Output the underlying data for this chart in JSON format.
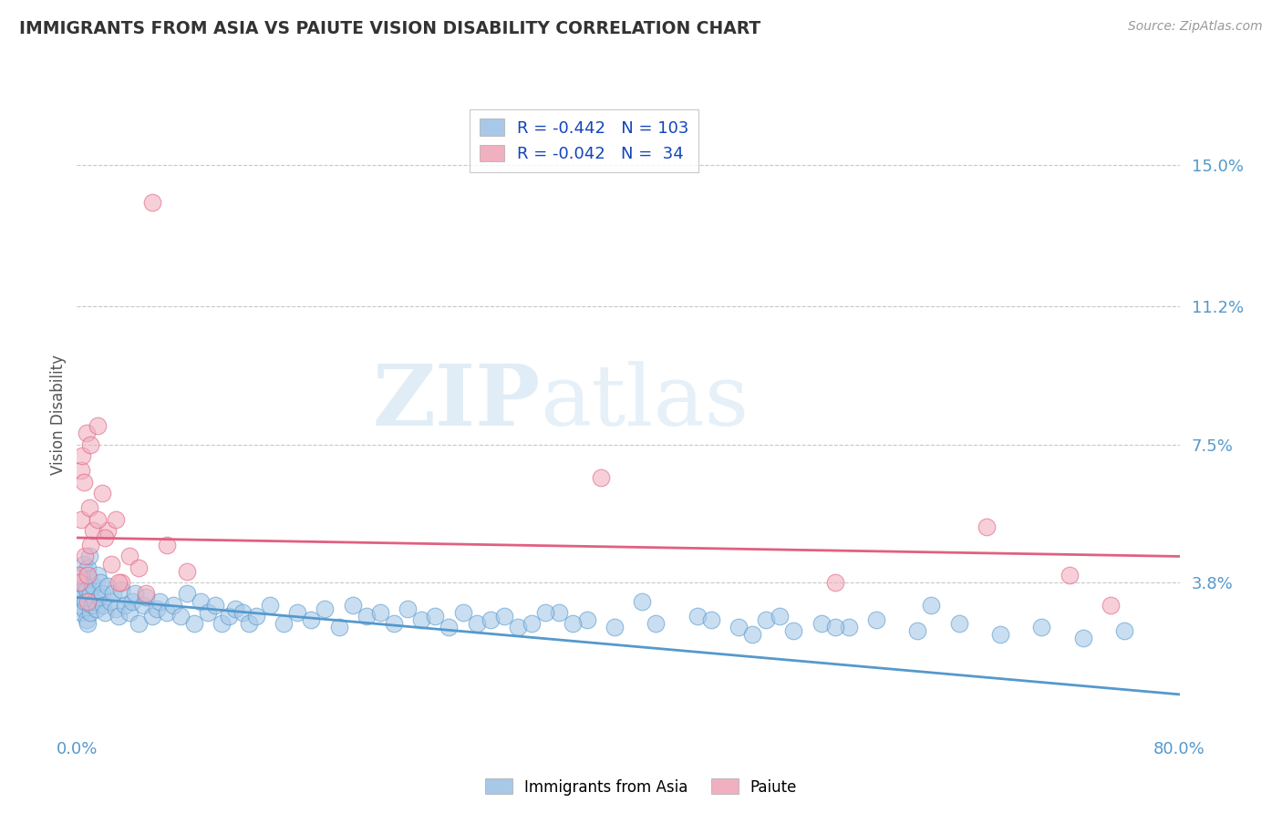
{
  "title": "IMMIGRANTS FROM ASIA VS PAIUTE VISION DISABILITY CORRELATION CHART",
  "source": "Source: ZipAtlas.com",
  "ylabel": "Vision Disability",
  "xlim": [
    0.0,
    0.8
  ],
  "ylim": [
    -0.002,
    0.168
  ],
  "yticks": [
    0.038,
    0.075,
    0.112,
    0.15
  ],
  "ytick_labels": [
    "3.8%",
    "7.5%",
    "11.2%",
    "15.0%"
  ],
  "xticks": [
    0.0,
    0.1,
    0.2,
    0.3,
    0.4,
    0.5,
    0.6,
    0.7,
    0.8
  ],
  "xtick_labels": [
    "0.0%",
    "",
    "",
    "",
    "",
    "",
    "",
    "",
    "80.0%"
  ],
  "blue_color": "#a8c8e8",
  "pink_color": "#f0b0c0",
  "blue_line_color": "#5599cc",
  "pink_line_color": "#e06080",
  "title_color": "#333333",
  "axis_label_color": "#555555",
  "tick_color": "#5599cc",
  "blue_scatter_x": [
    0.001,
    0.002,
    0.003,
    0.003,
    0.004,
    0.004,
    0.005,
    0.005,
    0.006,
    0.006,
    0.007,
    0.007,
    0.008,
    0.008,
    0.009,
    0.009,
    0.01,
    0.01,
    0.011,
    0.012,
    0.013,
    0.014,
    0.015,
    0.016,
    0.017,
    0.018,
    0.019,
    0.02,
    0.022,
    0.024,
    0.026,
    0.028,
    0.03,
    0.032,
    0.035,
    0.038,
    0.04,
    0.042,
    0.045,
    0.048,
    0.05,
    0.055,
    0.058,
    0.06,
    0.065,
    0.07,
    0.075,
    0.08,
    0.085,
    0.09,
    0.095,
    0.1,
    0.105,
    0.11,
    0.115,
    0.12,
    0.125,
    0.13,
    0.14,
    0.15,
    0.16,
    0.17,
    0.18,
    0.19,
    0.2,
    0.21,
    0.22,
    0.23,
    0.24,
    0.25,
    0.26,
    0.27,
    0.28,
    0.29,
    0.3,
    0.31,
    0.32,
    0.33,
    0.35,
    0.37,
    0.39,
    0.42,
    0.45,
    0.48,
    0.5,
    0.52,
    0.54,
    0.56,
    0.58,
    0.61,
    0.64,
    0.67,
    0.7,
    0.73,
    0.76,
    0.62,
    0.34,
    0.36,
    0.41,
    0.46,
    0.49,
    0.51,
    0.55
  ],
  "blue_scatter_y": [
    0.032,
    0.035,
    0.03,
    0.038,
    0.034,
    0.04,
    0.031,
    0.043,
    0.033,
    0.037,
    0.036,
    0.028,
    0.042,
    0.027,
    0.039,
    0.045,
    0.03,
    0.035,
    0.032,
    0.037,
    0.033,
    0.031,
    0.04,
    0.034,
    0.038,
    0.035,
    0.032,
    0.03,
    0.037,
    0.033,
    0.035,
    0.031,
    0.029,
    0.036,
    0.032,
    0.03,
    0.033,
    0.035,
    0.027,
    0.032,
    0.034,
    0.029,
    0.031,
    0.033,
    0.03,
    0.032,
    0.029,
    0.035,
    0.027,
    0.033,
    0.03,
    0.032,
    0.027,
    0.029,
    0.031,
    0.03,
    0.027,
    0.029,
    0.032,
    0.027,
    0.03,
    0.028,
    0.031,
    0.026,
    0.032,
    0.029,
    0.03,
    0.027,
    0.031,
    0.028,
    0.029,
    0.026,
    0.03,
    0.027,
    0.028,
    0.029,
    0.026,
    0.027,
    0.03,
    0.028,
    0.026,
    0.027,
    0.029,
    0.026,
    0.028,
    0.025,
    0.027,
    0.026,
    0.028,
    0.025,
    0.027,
    0.024,
    0.026,
    0.023,
    0.025,
    0.032,
    0.03,
    0.027,
    0.033,
    0.028,
    0.024,
    0.029,
    0.026
  ],
  "pink_scatter_x": [
    0.001,
    0.002,
    0.003,
    0.003,
    0.004,
    0.005,
    0.006,
    0.007,
    0.008,
    0.009,
    0.01,
    0.01,
    0.012,
    0.015,
    0.018,
    0.022,
    0.025,
    0.028,
    0.032,
    0.038,
    0.045,
    0.055,
    0.065,
    0.08,
    0.38,
    0.55,
    0.66,
    0.72,
    0.75,
    0.05,
    0.03,
    0.02,
    0.015,
    0.008
  ],
  "pink_scatter_y": [
    0.04,
    0.038,
    0.068,
    0.055,
    0.072,
    0.065,
    0.045,
    0.078,
    0.04,
    0.058,
    0.048,
    0.075,
    0.052,
    0.08,
    0.062,
    0.052,
    0.043,
    0.055,
    0.038,
    0.045,
    0.042,
    0.14,
    0.048,
    0.041,
    0.066,
    0.038,
    0.053,
    0.04,
    0.032,
    0.035,
    0.038,
    0.05,
    0.055,
    0.033
  ],
  "blue_trend_x": [
    0.0,
    0.8
  ],
  "blue_trend_y": [
    0.034,
    0.008
  ],
  "pink_trend_x": [
    0.0,
    0.8
  ],
  "pink_trend_y": [
    0.05,
    0.045
  ]
}
